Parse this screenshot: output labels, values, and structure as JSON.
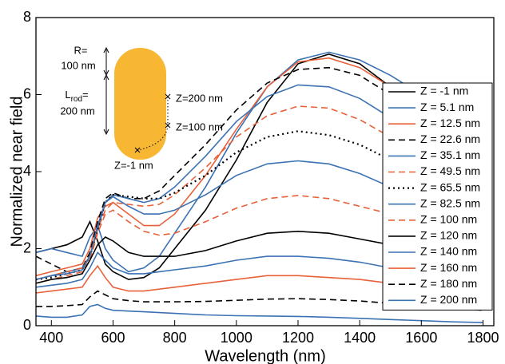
{
  "chart_data": {
    "type": "line",
    "xlabel": "Wavelength (nm)",
    "ylabel": "Normalized near field",
    "xlim": [
      350,
      1835
    ],
    "xticks": [
      400,
      600,
      800,
      1000,
      1200,
      1400,
      1600,
      1800
    ],
    "ylim": [
      0,
      8
    ],
    "yticks": [
      0,
      2,
      4,
      6,
      8
    ],
    "legend": "right",
    "x": [
      350,
      400,
      450,
      500,
      525,
      550,
      575,
      600,
      650,
      700,
      750,
      800,
      900,
      1000,
      1100,
      1200,
      1300,
      1400,
      1500,
      1600,
      1700,
      1800
    ],
    "series": [
      {
        "name": "Z = -1 nm",
        "color": "#000000",
        "style": "solid",
        "values": [
          1.9,
          2.0,
          2.1,
          2.3,
          2.7,
          2.2,
          1.6,
          1.4,
          1.2,
          1.25,
          1.5,
          2.0,
          3.0,
          4.3,
          5.8,
          6.8,
          7.05,
          6.8,
          6.2,
          5.4,
          4.7,
          4.0
        ]
      },
      {
        "name": "Z = 5.1 nm",
        "color": "#3b72b3",
        "style": "solid",
        "values": [
          1.9,
          2.0,
          1.9,
          1.8,
          2.3,
          2.6,
          2.0,
          1.7,
          1.4,
          1.5,
          1.8,
          2.4,
          3.6,
          5.0,
          6.2,
          6.9,
          7.1,
          6.9,
          6.5,
          6.0,
          5.3,
          4.6
        ]
      },
      {
        "name": "Z = 12.5 nm",
        "color": "#e8613a",
        "style": "solid",
        "values": [
          1.3,
          1.4,
          1.5,
          1.6,
          2.0,
          2.8,
          3.1,
          3.2,
          2.9,
          2.6,
          2.6,
          2.9,
          3.9,
          5.1,
          6.2,
          6.85,
          6.95,
          6.7,
          6.2,
          5.6,
          5.0,
          4.4
        ]
      },
      {
        "name": "Z = 22.6 nm",
        "color": "#000000",
        "style": "dashed",
        "values": [
          1.8,
          1.6,
          1.4,
          1.5,
          1.9,
          2.7,
          3.3,
          3.45,
          3.3,
          3.3,
          3.5,
          3.9,
          4.7,
          5.6,
          6.3,
          6.65,
          6.7,
          6.5,
          6.0,
          5.5,
          4.9,
          4.3
        ]
      },
      {
        "name": "Z = 35.1 nm",
        "color": "#3b72b3",
        "style": "solid",
        "values": [
          1.2,
          1.3,
          1.4,
          1.5,
          1.8,
          2.5,
          3.2,
          3.4,
          3.3,
          3.2,
          3.3,
          3.6,
          4.4,
          5.3,
          5.95,
          6.25,
          6.2,
          5.9,
          5.4,
          4.8,
          4.2,
          3.7
        ]
      },
      {
        "name": "Z = 49.5 nm",
        "color": "#e8613a",
        "style": "dashed",
        "values": [
          1.2,
          1.3,
          1.4,
          1.5,
          1.8,
          2.5,
          3.0,
          3.2,
          3.15,
          3.1,
          3.15,
          3.4,
          4.1,
          4.9,
          5.45,
          5.7,
          5.65,
          5.35,
          4.9,
          4.4,
          3.9,
          3.4
        ]
      },
      {
        "name": "Z = 65.5 nm",
        "color": "#000000",
        "style": "dotted",
        "values": [
          1.2,
          1.25,
          1.35,
          1.45,
          1.8,
          2.5,
          3.2,
          3.4,
          3.35,
          3.3,
          3.3,
          3.45,
          3.9,
          4.5,
          4.9,
          5.05,
          4.95,
          4.7,
          4.3,
          3.9,
          3.5,
          3.1
        ]
      },
      {
        "name": "Z = 82.5 nm",
        "color": "#3b72b3",
        "style": "solid",
        "values": [
          1.2,
          1.3,
          1.35,
          1.45,
          1.8,
          2.6,
          3.2,
          3.35,
          3.1,
          2.9,
          2.9,
          3.0,
          3.4,
          3.9,
          4.2,
          4.28,
          4.2,
          3.95,
          3.6,
          3.3,
          3.0,
          2.7
        ]
      },
      {
        "name": "Z = 100 nm",
        "color": "#e8613a",
        "style": "dashed",
        "values": [
          1.1,
          1.2,
          1.3,
          1.4,
          1.7,
          2.4,
          2.9,
          3.0,
          2.7,
          2.45,
          2.35,
          2.4,
          2.7,
          3.05,
          3.3,
          3.38,
          3.3,
          3.1,
          2.9,
          2.6,
          2.4,
          2.2
        ]
      },
      {
        "name": "Z = 120 nm",
        "color": "#000000",
        "style": "solid",
        "values": [
          1.1,
          1.2,
          1.25,
          1.35,
          1.7,
          2.1,
          2.3,
          2.2,
          1.9,
          1.8,
          1.8,
          1.8,
          1.95,
          2.2,
          2.4,
          2.45,
          2.4,
          2.25,
          2.1,
          1.9,
          1.75,
          1.6
        ]
      },
      {
        "name": "Z = 140 nm",
        "color": "#3b72b3",
        "style": "solid",
        "values": [
          1.0,
          1.05,
          1.1,
          1.2,
          1.5,
          1.9,
          1.7,
          1.5,
          1.35,
          1.35,
          1.4,
          1.45,
          1.55,
          1.7,
          1.8,
          1.8,
          1.75,
          1.65,
          1.5,
          1.4,
          1.3,
          1.2
        ]
      },
      {
        "name": "Z = 160 nm",
        "color": "#e8613a",
        "style": "solid",
        "values": [
          0.85,
          0.9,
          0.95,
          1.0,
          1.3,
          1.55,
          1.25,
          1.0,
          0.9,
          0.9,
          0.95,
          1.0,
          1.1,
          1.2,
          1.3,
          1.3,
          1.25,
          1.2,
          1.1,
          1.0,
          0.9,
          0.85
        ]
      },
      {
        "name": "Z = 180 nm",
        "color": "#000000",
        "style": "dashed",
        "values": [
          0.5,
          0.5,
          0.52,
          0.55,
          0.75,
          0.9,
          0.8,
          0.7,
          0.65,
          0.62,
          0.62,
          0.62,
          0.63,
          0.66,
          0.69,
          0.7,
          0.68,
          0.64,
          0.58,
          0.52,
          0.46,
          0.4
        ]
      },
      {
        "name": "Z = 200 nm",
        "color": "#3b72b3",
        "style": "solid",
        "values": [
          0.25,
          0.22,
          0.22,
          0.28,
          0.5,
          0.55,
          0.45,
          0.4,
          0.38,
          0.36,
          0.34,
          0.32,
          0.28,
          0.26,
          0.25,
          0.24,
          0.22,
          0.19,
          0.16,
          0.13,
          0.1,
          0.08
        ]
      }
    ],
    "inset": {
      "r_label": "R=",
      "r_value": "100 nm",
      "l_label": "L",
      "l_subscript": "rod",
      "l_eq": "=",
      "l_value": "200 nm",
      "z_labels": [
        "Z=200 nm",
        "Z=100 nm",
        "Z=-1 nm"
      ]
    }
  }
}
